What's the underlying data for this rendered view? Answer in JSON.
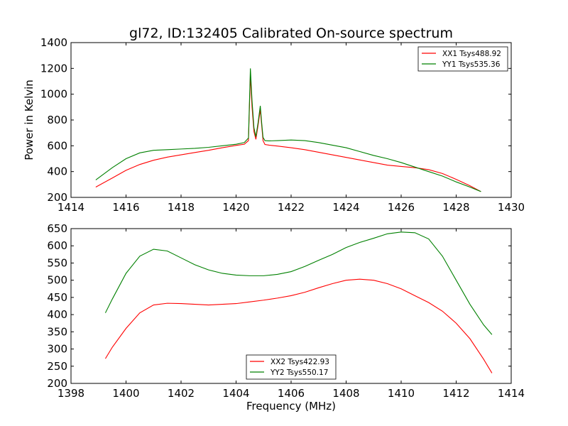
{
  "chart_data": [
    {
      "type": "line",
      "title": "gl72, ID:132405 Calibrated On-source spectrum",
      "xlabel": "",
      "ylabel": "Power in Kelvin",
      "xlim": [
        1414,
        1430
      ],
      "ylim": [
        200,
        1400
      ],
      "xticks": [
        "1414",
        "1416",
        "1418",
        "1420",
        "1422",
        "1424",
        "1426",
        "1428",
        "1430"
      ],
      "yticks": [
        "200",
        "400",
        "600",
        "800",
        "1000",
        "1200",
        "1400"
      ],
      "grid": false,
      "legend_position": "top-right",
      "series": [
        {
          "name": "XX1 Tsys488.92",
          "color": "#ff0000",
          "x": [
            1414.9,
            1415.5,
            1416.0,
            1416.5,
            1417.0,
            1417.5,
            1418.0,
            1418.5,
            1419.0,
            1419.5,
            1420.0,
            1420.3,
            1420.45,
            1420.52,
            1420.58,
            1420.65,
            1420.72,
            1420.8,
            1420.88,
            1420.93,
            1420.98,
            1421.05,
            1421.2,
            1421.5,
            1422.0,
            1422.5,
            1423.0,
            1423.5,
            1424.0,
            1424.5,
            1425.0,
            1425.5,
            1426.0,
            1426.5,
            1427.0,
            1427.5,
            1428.0,
            1428.5,
            1428.9
          ],
          "values": [
            280,
            350,
            410,
            455,
            488,
            512,
            530,
            548,
            565,
            585,
            603,
            612,
            640,
            1150,
            900,
            710,
            650,
            760,
            880,
            760,
            640,
            610,
            605,
            598,
            585,
            570,
            550,
            530,
            510,
            490,
            470,
            450,
            440,
            430,
            415,
            385,
            340,
            290,
            245
          ]
        },
        {
          "name": "YY1 Tsys535.36",
          "color": "#008000",
          "x": [
            1414.9,
            1415.5,
            1416.0,
            1416.5,
            1417.0,
            1417.5,
            1418.0,
            1418.5,
            1419.0,
            1419.5,
            1420.0,
            1420.3,
            1420.45,
            1420.52,
            1420.58,
            1420.65,
            1420.72,
            1420.8,
            1420.88,
            1420.93,
            1420.98,
            1421.05,
            1421.2,
            1421.5,
            1422.0,
            1422.5,
            1423.0,
            1423.5,
            1424.0,
            1424.5,
            1425.0,
            1425.5,
            1426.0,
            1426.5,
            1427.0,
            1427.5,
            1428.0,
            1428.5,
            1428.9
          ],
          "values": [
            335,
            430,
            500,
            545,
            565,
            570,
            575,
            580,
            588,
            600,
            612,
            625,
            660,
            1200,
            950,
            740,
            670,
            780,
            910,
            780,
            665,
            640,
            638,
            640,
            645,
            640,
            625,
            605,
            585,
            555,
            525,
            500,
            470,
            435,
            400,
            365,
            320,
            280,
            245
          ]
        }
      ]
    },
    {
      "type": "line",
      "title": "",
      "xlabel": "Frequency (MHz)",
      "ylabel": "",
      "xlim": [
        1398,
        1414
      ],
      "ylim": [
        200,
        650
      ],
      "xticks": [
        "1398",
        "1400",
        "1402",
        "1404",
        "1406",
        "1408",
        "1410",
        "1412",
        "1414"
      ],
      "yticks": [
        "200",
        "250",
        "300",
        "350",
        "400",
        "450",
        "500",
        "550",
        "600",
        "650"
      ],
      "grid": false,
      "legend_position": "bottom-center",
      "series": [
        {
          "name": "XX2 Tsys422.93",
          "color": "#ff0000",
          "x": [
            1399.25,
            1399.5,
            1400.0,
            1400.5,
            1401.0,
            1401.5,
            1402.0,
            1402.5,
            1403.0,
            1403.5,
            1404.0,
            1404.5,
            1405.0,
            1405.5,
            1406.0,
            1406.5,
            1407.0,
            1407.5,
            1408.0,
            1408.5,
            1409.0,
            1409.5,
            1410.0,
            1410.5,
            1411.0,
            1411.5,
            1412.0,
            1412.5,
            1413.0,
            1413.3
          ],
          "values": [
            272,
            305,
            360,
            405,
            428,
            433,
            432,
            430,
            428,
            430,
            432,
            437,
            442,
            448,
            455,
            465,
            478,
            490,
            500,
            503,
            500,
            490,
            475,
            455,
            435,
            410,
            375,
            330,
            270,
            230
          ]
        },
        {
          "name": "YY2 Tsys550.17",
          "color": "#008000",
          "x": [
            1399.25,
            1399.5,
            1400.0,
            1400.5,
            1401.0,
            1401.5,
            1402.0,
            1402.5,
            1403.0,
            1403.5,
            1404.0,
            1404.5,
            1405.0,
            1405.5,
            1406.0,
            1406.5,
            1407.0,
            1407.5,
            1408.0,
            1408.5,
            1409.0,
            1409.5,
            1410.0,
            1410.5,
            1411.0,
            1411.5,
            1412.0,
            1412.5,
            1413.0,
            1413.3
          ],
          "values": [
            405,
            445,
            520,
            570,
            590,
            585,
            565,
            545,
            530,
            520,
            515,
            513,
            513,
            517,
            525,
            540,
            558,
            575,
            595,
            610,
            622,
            635,
            640,
            638,
            620,
            570,
            500,
            430,
            370,
            342
          ]
        }
      ]
    }
  ]
}
